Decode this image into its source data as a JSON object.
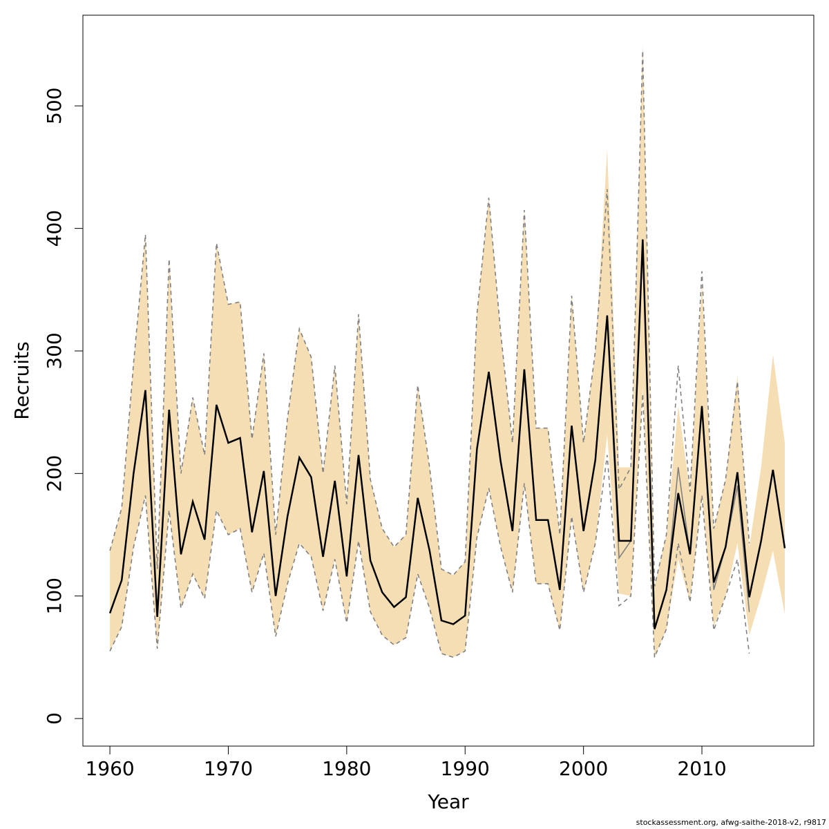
{
  "chart_data": {
    "type": "band-line",
    "xlabel": "Year",
    "ylabel": "Recruits",
    "footer": "stockassessment.org, afwg-saithe-2018-v2, r9817",
    "x": [
      1960,
      1961,
      1962,
      1963,
      1964,
      1965,
      1966,
      1967,
      1968,
      1969,
      1970,
      1971,
      1972,
      1973,
      1974,
      1975,
      1976,
      1977,
      1978,
      1979,
      1980,
      1981,
      1982,
      1983,
      1984,
      1985,
      1986,
      1987,
      1988,
      1989,
      1990,
      1991,
      1992,
      1993,
      1994,
      1995,
      1996,
      1997,
      1998,
      1999,
      2000,
      2001,
      2002,
      2003,
      2004,
      2005,
      2006,
      2007,
      2008,
      2009,
      2010,
      2011,
      2012,
      2013,
      2014,
      2015,
      2016,
      2017
    ],
    "band": {
      "color": "#f5deb3",
      "upper": [
        137,
        172,
        290,
        395,
        122,
        375,
        200,
        262,
        215,
        388,
        338,
        340,
        228,
        298,
        150,
        245,
        318,
        295,
        200,
        288,
        175,
        330,
        195,
        155,
        140,
        150,
        272,
        205,
        122,
        117,
        128,
        330,
        425,
        315,
        225,
        415,
        237,
        237,
        150,
        345,
        225,
        300,
        465,
        205,
        205,
        550,
        108,
        150,
        255,
        185,
        355,
        155,
        195,
        280,
        140,
        205,
        297,
        225
      ],
      "lower": [
        55,
        75,
        140,
        182,
        57,
        170,
        90,
        118,
        98,
        170,
        150,
        155,
        103,
        135,
        67,
        110,
        143,
        132,
        88,
        130,
        78,
        145,
        87,
        68,
        60,
        66,
        118,
        90,
        53,
        50,
        55,
        148,
        188,
        140,
        103,
        192,
        110,
        110,
        72,
        165,
        103,
        143,
        232,
        102,
        100,
        270,
        50,
        73,
        130,
        95,
        182,
        75,
        100,
        143,
        68,
        100,
        137,
        85
      ]
    },
    "series": [
      {
        "color": "#808080",
        "style": "dashed",
        "values": [
          137,
          172,
          290,
          395,
          122,
          375,
          200,
          262,
          215,
          388,
          338,
          340,
          228,
          298,
          150,
          245,
          318,
          295,
          200,
          288,
          175,
          330,
          195,
          155,
          140,
          150,
          272,
          205,
          122,
          117,
          128,
          330,
          425,
          315,
          225,
          415,
          237,
          237,
          150,
          345,
          225,
          300,
          432,
          187,
          205,
          545,
          108,
          150,
          288,
          185,
          365,
          155,
          195,
          275,
          143,
          null,
          null,
          null
        ]
      },
      {
        "color": "#808080",
        "style": "dashed",
        "values": [
          55,
          75,
          140,
          182,
          57,
          170,
          90,
          118,
          98,
          170,
          150,
          155,
          103,
          135,
          67,
          110,
          143,
          132,
          88,
          130,
          78,
          145,
          87,
          68,
          60,
          66,
          118,
          90,
          53,
          50,
          55,
          148,
          188,
          140,
          103,
          192,
          110,
          110,
          72,
          165,
          103,
          143,
          215,
          92,
          100,
          265,
          50,
          73,
          143,
          95,
          182,
          72,
          100,
          130,
          53,
          null,
          null,
          null
        ]
      },
      {
        "color": "#808080",
        "style": "solid",
        "values": [
          86,
          113,
          200,
          268,
          83,
          252,
          134,
          177,
          146,
          256,
          225,
          229,
          152,
          202,
          100,
          165,
          213,
          197,
          132,
          194,
          116,
          215,
          129,
          103,
          91,
          99,
          180,
          137,
          80,
          77,
          84,
          220,
          283,
          210,
          153,
          285,
          162,
          162,
          105,
          239,
          153,
          211,
          329,
          131,
          145,
          391,
          73,
          105,
          205,
          134,
          255,
          105,
          140,
          190,
          87,
          null,
          null,
          null
        ]
      },
      {
        "color": "#000000",
        "style": "solid",
        "values": [
          86,
          113,
          200,
          268,
          83,
          252,
          134,
          177,
          146,
          256,
          225,
          229,
          152,
          202,
          100,
          165,
          213,
          197,
          132,
          194,
          116,
          215,
          129,
          103,
          91,
          99,
          180,
          137,
          80,
          77,
          84,
          220,
          283,
          210,
          153,
          285,
          162,
          162,
          105,
          239,
          153,
          211,
          329,
          145,
          145,
          391,
          73,
          105,
          184,
          134,
          255,
          111,
          140,
          201,
          99,
          145,
          203,
          139
        ]
      }
    ],
    "xlim": [
      1957.72,
      2019.45
    ],
    "xticks": [
      1960,
      1970,
      1980,
      1990,
      2000,
      2010
    ],
    "ylim": [
      -22.5,
      574
    ],
    "yticks": [
      0,
      100,
      200,
      300,
      400,
      500
    ]
  }
}
